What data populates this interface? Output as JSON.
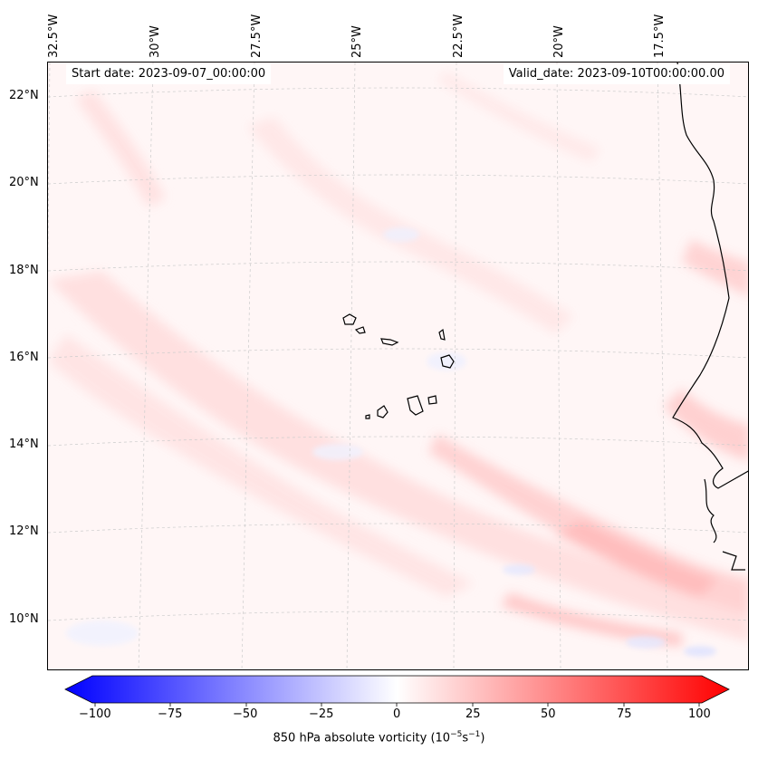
{
  "map": {
    "start_date": "Start date: 2023-09-07_00:00:00",
    "valid_date": "Valid_date: 2023-09-10T00:00:00.00",
    "longitude_labels": [
      "32.5°W",
      "30°W",
      "27.5°W",
      "25°W",
      "22.5°W",
      "20°W",
      "17.5°W"
    ],
    "latitude_labels": [
      "22°N",
      "20°N",
      "18°N",
      "16°N",
      "14°N",
      "12°N",
      "10°N"
    ]
  },
  "colorbar": {
    "ticks": [
      "−100",
      "−75",
      "−50",
      "−25",
      "0",
      "25",
      "50",
      "75",
      "100"
    ],
    "title_prefix": "850 hPa absolute vorticity (10",
    "title_exp1": "−5",
    "title_mid": "s",
    "title_exp2": "−1",
    "title_suffix": ")",
    "min_color": "#0000ff",
    "mid_color": "#ffffff",
    "max_color": "#ff0000"
  }
}
